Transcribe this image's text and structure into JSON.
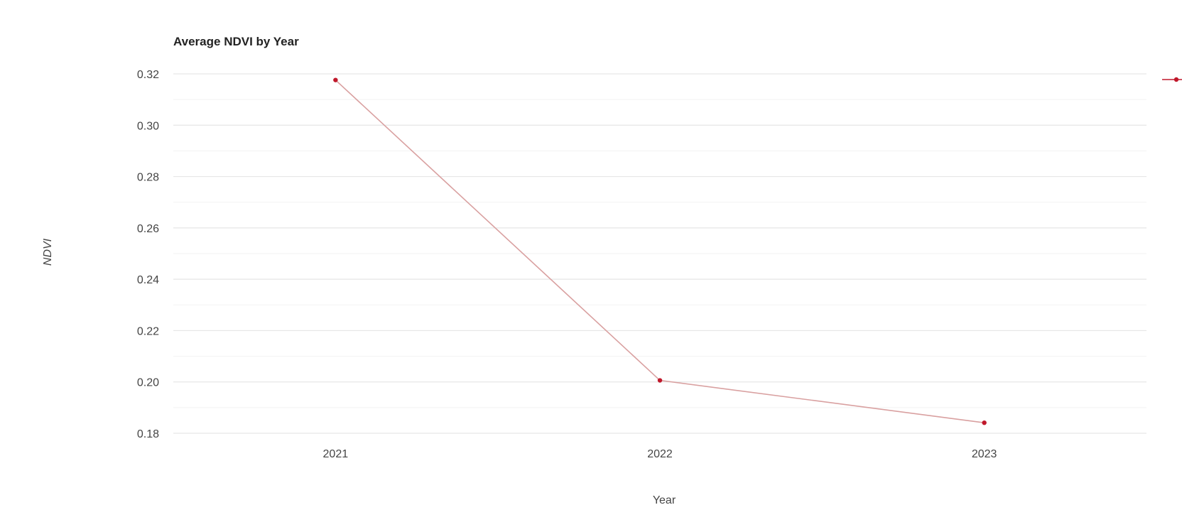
{
  "chart_data": {
    "type": "line",
    "title": "Average NDVI by Year",
    "xlabel": "Year",
    "ylabel": "NDVI",
    "categories": [
      "2021",
      "2022",
      "2023"
    ],
    "series": [
      {
        "values": [
          0.3176,
          0.2006,
          0.1841
        ],
        "color": "#c0392b"
      }
    ],
    "ylim": [
      0.18,
      0.32
    ],
    "yticks": [
      "0.32",
      "0.30",
      "0.28",
      "0.26",
      "0.24",
      "0.22",
      "0.20",
      "0.18"
    ],
    "ytick_values": [
      0.32,
      0.3,
      0.28,
      0.26,
      0.24,
      0.22,
      0.2,
      0.18
    ],
    "grid": true,
    "legend": "top-right",
    "colors": {
      "line": "#d9a0a0",
      "marker": "#c0182b",
      "grid_major": "#e6e6e6",
      "grid_minor": "#f2f2f2"
    }
  }
}
